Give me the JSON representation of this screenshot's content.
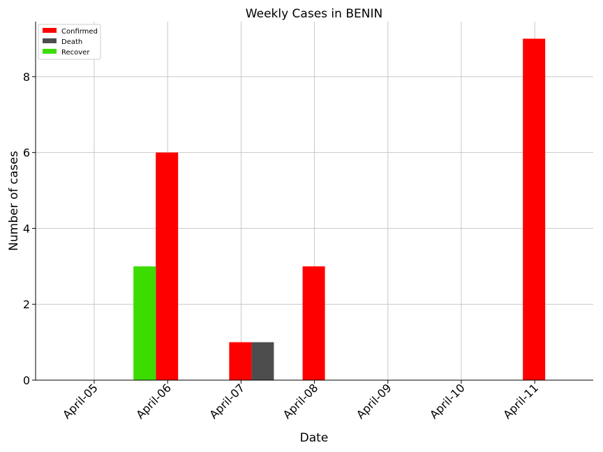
{
  "chart_data": {
    "type": "bar",
    "title": "Weekly Cases in BENIN",
    "xlabel": "Date",
    "ylabel": "Number of cases",
    "categories": [
      "April-05",
      "April-06",
      "April-07",
      "April-08",
      "April-09",
      "April-10",
      "April-11"
    ],
    "series": [
      {
        "name": "Confirmed",
        "color": "#ff0000",
        "values": [
          0,
          6,
          1,
          3,
          0,
          0,
          9
        ]
      },
      {
        "name": "Death",
        "color": "#4d4d4d",
        "values": [
          0,
          0,
          1,
          0,
          0,
          0,
          0
        ]
      },
      {
        "name": "Recover",
        "color": "#3ddc00",
        "values": [
          0,
          3,
          0,
          0,
          0,
          0,
          0
        ]
      }
    ],
    "yticks": [
      0,
      2,
      4,
      6,
      8
    ],
    "ylim": [
      0,
      9.45
    ],
    "grid": true,
    "legend_position": "top-left"
  }
}
